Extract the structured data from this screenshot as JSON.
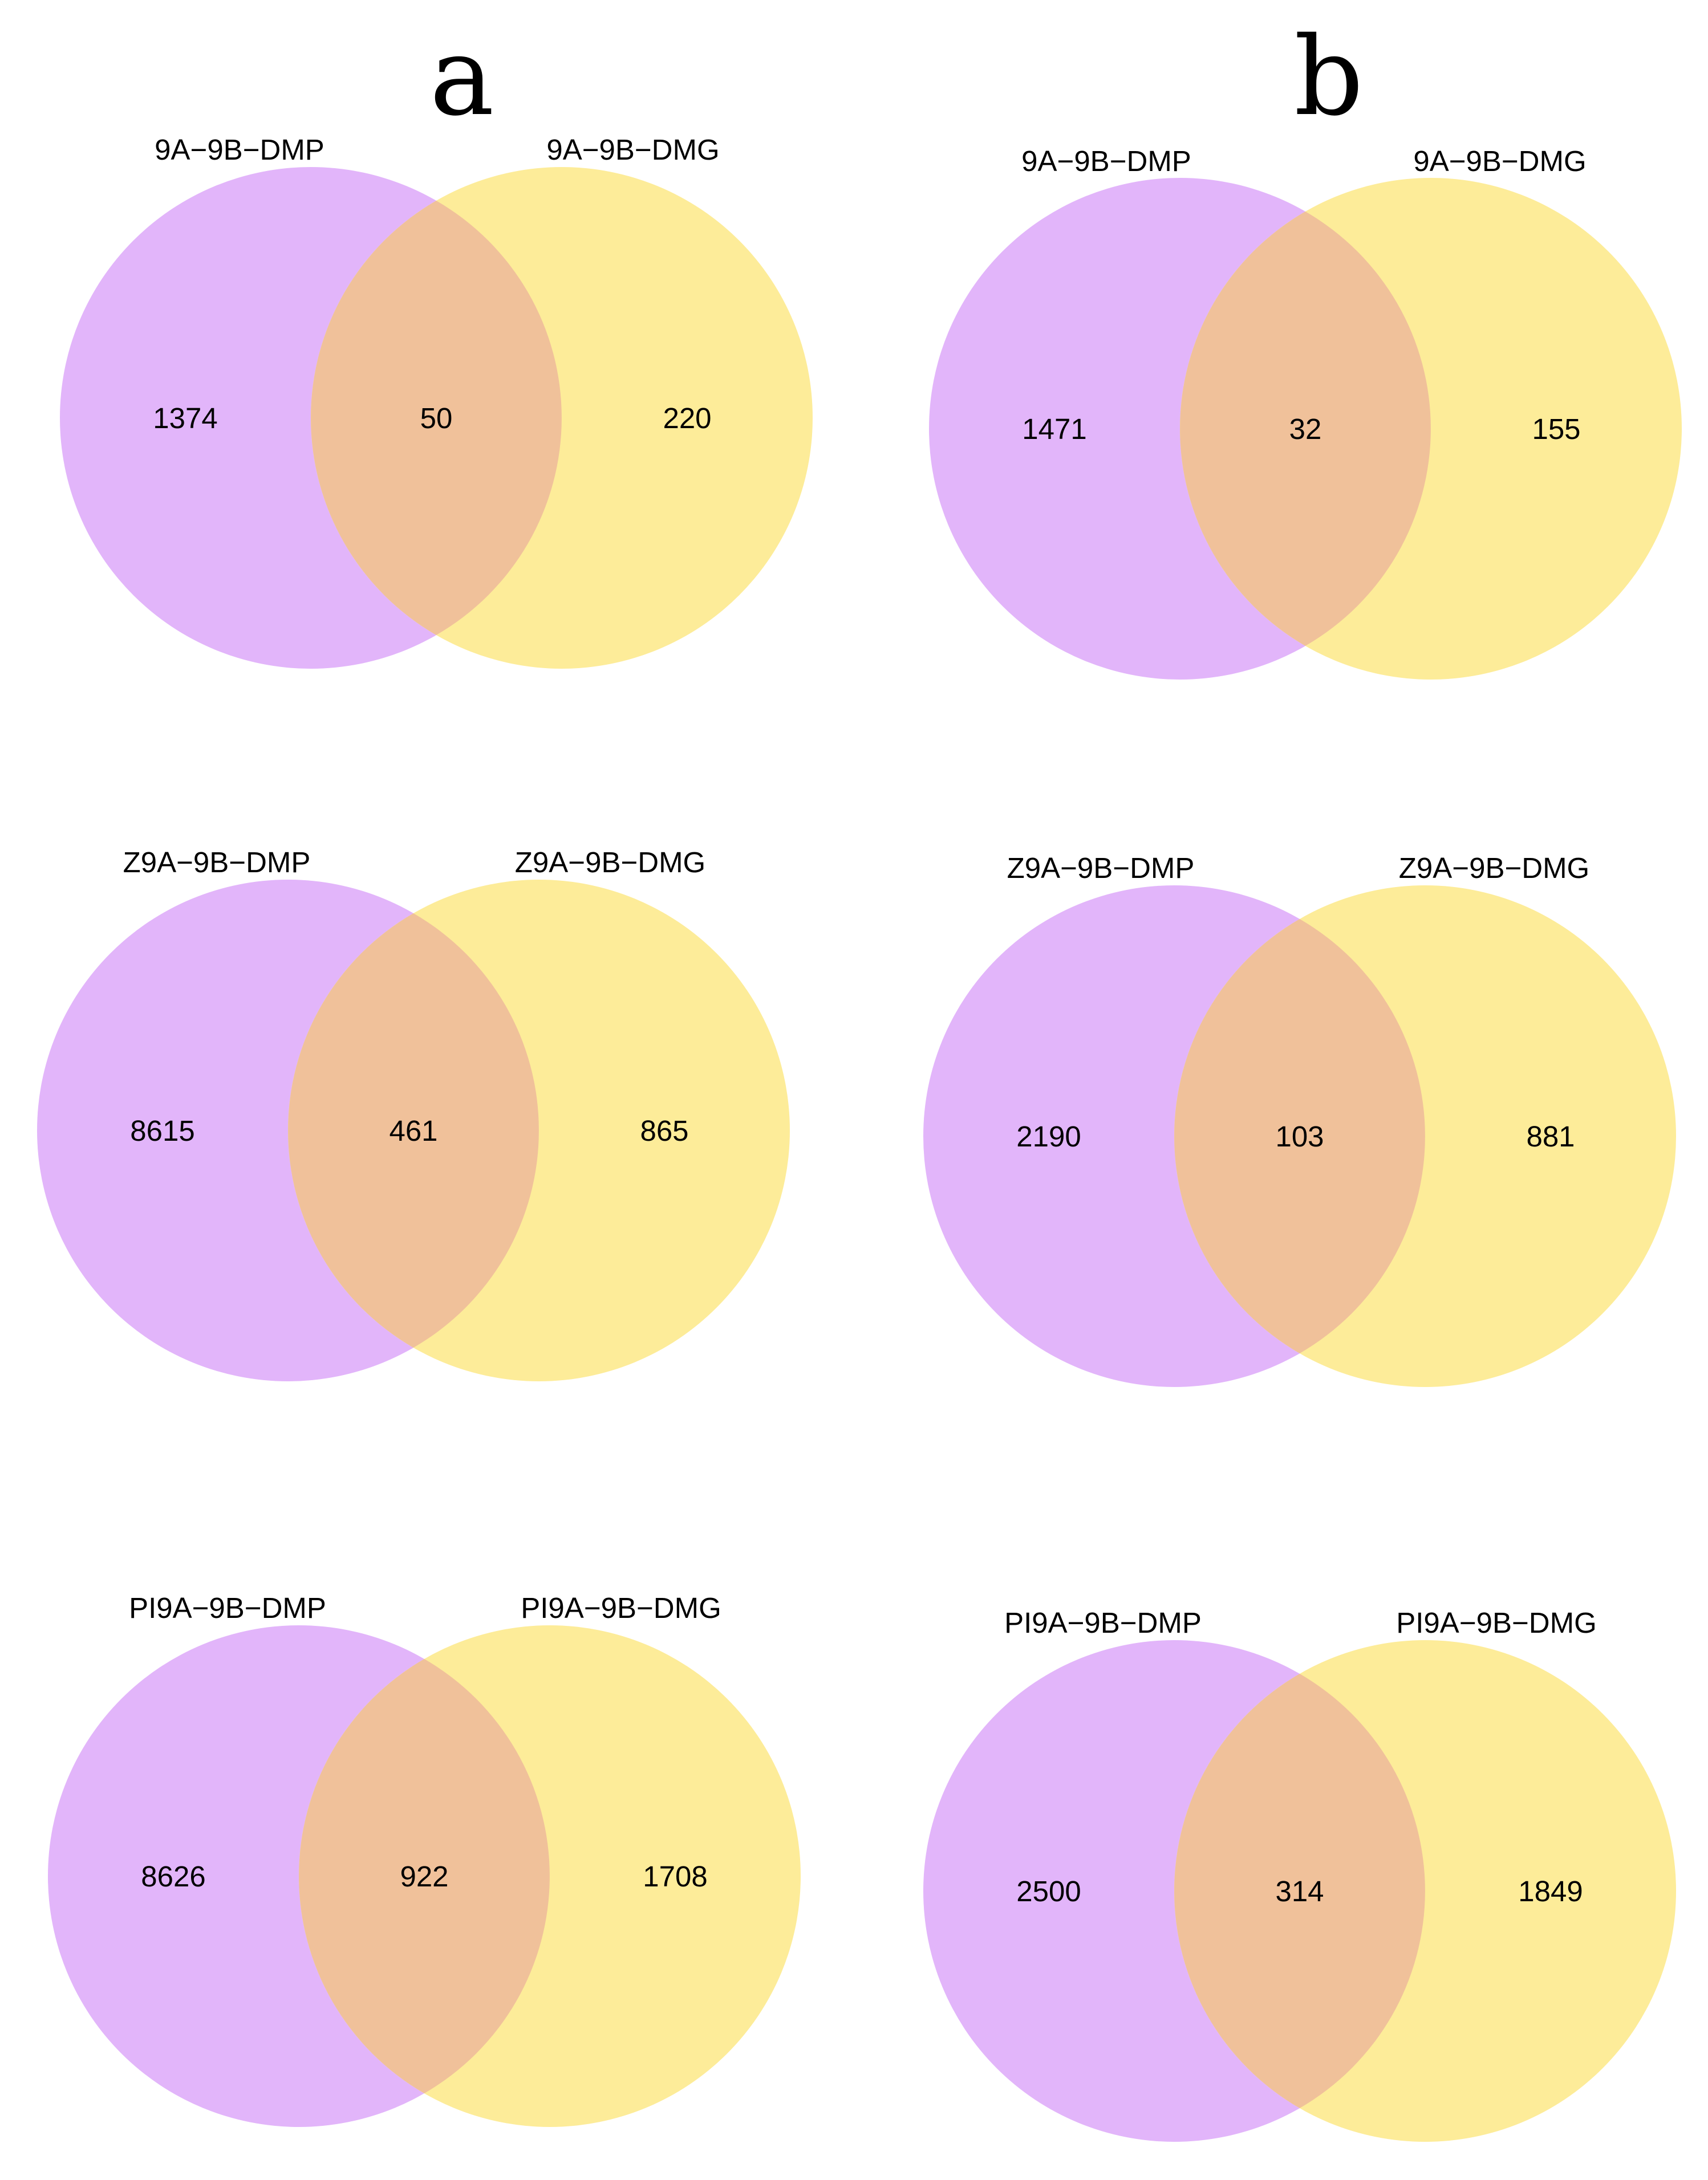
{
  "panels": [
    {
      "letter": "a"
    },
    {
      "letter": "b"
    }
  ],
  "colors": {
    "left_set": "#E2B5FA",
    "right_set": "#FDEC99",
    "overlap": "#F0C19A",
    "text": "#000000"
  },
  "venns": [
    {
      "panel": "a",
      "left_label": "9A−9B−DMP",
      "right_label": "9A−9B−DMG",
      "left_only": "1374",
      "both": "50",
      "right_only": "220"
    },
    {
      "panel": "b",
      "left_label": "9A−9B−DMP",
      "right_label": "9A−9B−DMG",
      "left_only": "1471",
      "both": "32",
      "right_only": "155"
    },
    {
      "panel": "a",
      "left_label": "Z9A−9B−DMP",
      "right_label": "Z9A−9B−DMG",
      "left_only": "8615",
      "both": "461",
      "right_only": "865"
    },
    {
      "panel": "b",
      "left_label": "Z9A−9B−DMP",
      "right_label": "Z9A−9B−DMG",
      "left_only": "2190",
      "both": "103",
      "right_only": "881"
    },
    {
      "panel": "a",
      "left_label": "PI9A−9B−DMP",
      "right_label": "PI9A−9B−DMG",
      "left_only": "8626",
      "both": "922",
      "right_only": "1708"
    },
    {
      "panel": "b",
      "left_label": "PI9A−9B−DMP",
      "right_label": "PI9A−9B−DMG",
      "left_only": "2500",
      "both": "314",
      "right_only": "1849"
    }
  ]
}
